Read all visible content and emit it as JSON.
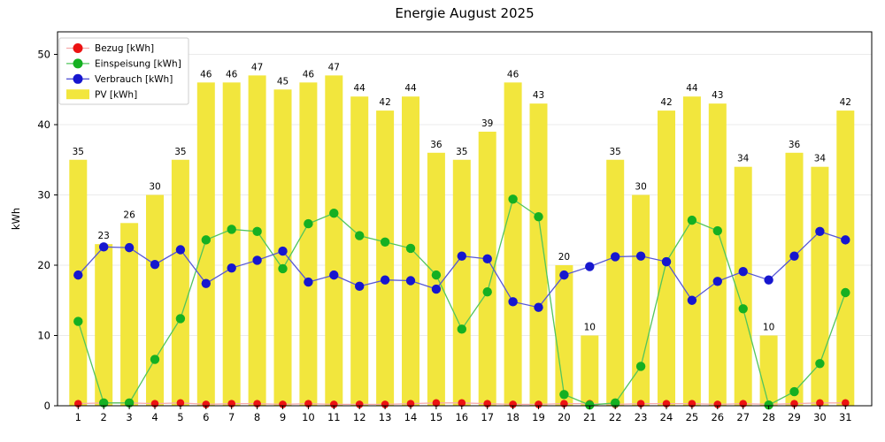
{
  "title": "Energie August 2025",
  "chart_data": {
    "type": "bar+line",
    "title": "Energie August 2025",
    "xlabel": "",
    "ylabel": "kWh",
    "ylim": [
      0,
      53.2
    ],
    "yticks": [
      0,
      10,
      20,
      30,
      40,
      50
    ],
    "grid": true,
    "legend_position": "upper-left",
    "categories": [
      "1",
      "2",
      "3",
      "4",
      "5",
      "6",
      "7",
      "8",
      "9",
      "10",
      "11",
      "12",
      "13",
      "14",
      "15",
      "16",
      "17",
      "18",
      "19",
      "20",
      "21",
      "22",
      "23",
      "24",
      "25",
      "26",
      "27",
      "28",
      "29",
      "30",
      "31"
    ],
    "series": [
      {
        "name": "Bezug [kWh]",
        "type": "line",
        "marker_color": "#ec1212",
        "line_color": "#f6abab",
        "values": [
          0.3,
          0.4,
          0.4,
          0.3,
          0.4,
          0.2,
          0.3,
          0.3,
          0.2,
          0.3,
          0.2,
          0.2,
          0.2,
          0.3,
          0.4,
          0.4,
          0.3,
          0.2,
          0.2,
          0.3,
          0.3,
          0.2,
          0.3,
          0.3,
          0.3,
          0.2,
          0.3,
          0.2,
          0.3,
          0.4,
          0.4
        ]
      },
      {
        "name": "Einspeisung [kWh]",
        "type": "line",
        "marker_color": "#15b022",
        "line_color": "#52c55c",
        "values": [
          12.0,
          0.4,
          0.4,
          6.6,
          12.4,
          23.6,
          25.1,
          24.8,
          19.5,
          25.9,
          27.4,
          24.2,
          23.3,
          22.4,
          18.6,
          10.9,
          16.2,
          29.4,
          26.9,
          1.6,
          0.1,
          0.4,
          5.6,
          20.5,
          26.4,
          24.9,
          13.8,
          0.1,
          2.0,
          6.0,
          16.1
        ]
      },
      {
        "name": "Verbrauch [kWh]",
        "type": "line",
        "marker_color": "#1616cf",
        "line_color": "#5656d6",
        "values": [
          18.6,
          22.6,
          22.5,
          20.1,
          22.2,
          17.4,
          19.6,
          20.7,
          22.0,
          17.6,
          18.6,
          17.0,
          17.9,
          17.8,
          16.6,
          21.3,
          20.9,
          14.8,
          14.0,
          18.6,
          19.8,
          21.2,
          21.3,
          20.5,
          15.0,
          17.7,
          19.1,
          17.9,
          21.3,
          24.8,
          23.6
        ]
      },
      {
        "name": "PV [kWh]",
        "type": "bar",
        "color": "#f2e63d",
        "bar_labels": true,
        "values": [
          35,
          23,
          26,
          30,
          35,
          46,
          46,
          47,
          45,
          46,
          47,
          44,
          42,
          44,
          36,
          35,
          39,
          46,
          43,
          20,
          10,
          35,
          30,
          42,
          44,
          43,
          34,
          10,
          36,
          34,
          42
        ]
      }
    ],
    "colors": {
      "grid": "#ebebeb",
      "spine": "#000000",
      "tick_label": "#000000",
      "bar_label": "#000000",
      "legend_border": "#cccccc",
      "legend_bg": "#ffffff"
    }
  }
}
